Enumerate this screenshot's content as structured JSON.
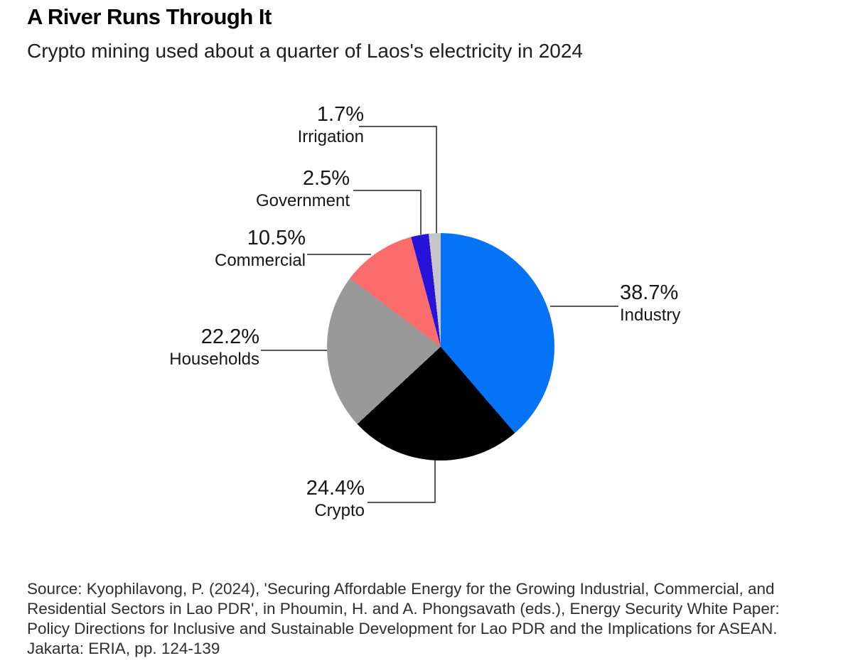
{
  "header": {
    "title": "A River Runs Through It",
    "subtitle": "Crypto mining used about a quarter of Laos's electricity in 2024"
  },
  "chart_data": {
    "type": "pie",
    "title": "A River Runs Through It",
    "subtitle": "Crypto mining used about a quarter of Laos's electricity in 2024",
    "start_angle_deg": 0,
    "direction": "clockwise",
    "legend_position": "callout-labels",
    "slices": [
      {
        "label": "Industry",
        "value": 38.7,
        "pct_label": "38.7%",
        "color": "#0573f5"
      },
      {
        "label": "Crypto",
        "value": 24.4,
        "pct_label": "24.4%",
        "color": "#000000"
      },
      {
        "label": "Households",
        "value": 22.2,
        "pct_label": "22.2%",
        "color": "#999999"
      },
      {
        "label": "Commercial",
        "value": 10.5,
        "pct_label": "10.5%",
        "color": "#fb6d6d"
      },
      {
        "label": "Government",
        "value": 2.5,
        "pct_label": "2.5%",
        "color": "#2612d9"
      },
      {
        "label": "Irrigation",
        "value": 1.7,
        "pct_label": "1.7%",
        "color": "#c6c6ca"
      }
    ],
    "leader_line_color": "#55565a"
  },
  "source": {
    "lines": [
      "Source: Kyophilavong, P. (2024), 'Securing Affordable Energy for the Growing Industrial, Commercial, and",
      "Residential Sectors in Lao PDR', in Phoumin, H. and A. Phongsavath (eds.), Energy Security White Paper:",
      "Policy Directions for Inclusive and Sustainable Development for Lao PDR and the Implications for ASEAN.",
      "Jakarta: ERIA, pp. 124-139"
    ]
  }
}
